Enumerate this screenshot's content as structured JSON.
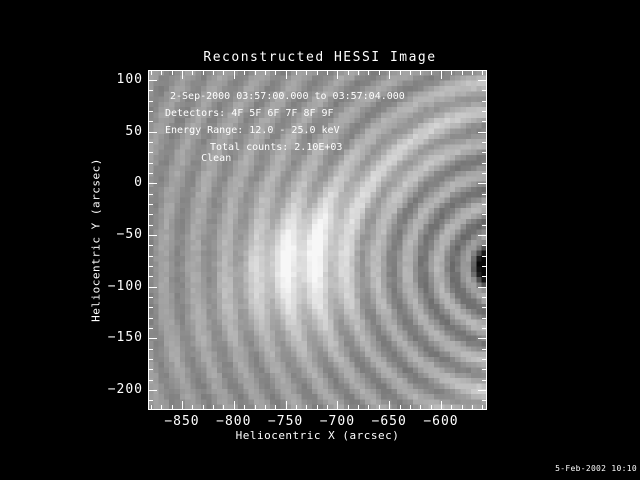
{
  "colors": {
    "background": "#000000",
    "foreground": "#ffffff",
    "image_palette": "grayscale"
  },
  "title": "Reconstructed HESSI Image",
  "footer_timestamp": "5-Feb-2002 10:10",
  "plot": {
    "xlabel": "Heliocentric X (arcsec)",
    "ylabel": "Heliocentric Y (arcsec)",
    "annotations": {
      "time_range": "2-Sep-2000 03:57:00.000 to 03:57:04.000",
      "detectors": "Detectors: 4F 5F 6F 7F 8F 9F",
      "energy_range": "Energy Range: 12.0 - 25.0 keV",
      "algorithm": "Clean",
      "total_counts": "Total counts: 2.10E+03"
    }
  },
  "chart_data": {
    "type": "heatmap",
    "title": "Reconstructed HESSI Image",
    "xlabel": "Heliocentric X (arcsec)",
    "ylabel": "Heliocentric Y (arcsec)",
    "xlim": [
      -882.8,
      -555.6
    ],
    "ylim": [
      -219.3,
      109.7
    ],
    "x_ticks": [
      -850,
      -800,
      -750,
      -700,
      -650,
      -600
    ],
    "y_ticks": [
      100,
      50,
      0,
      -50,
      -100,
      -150,
      -200
    ],
    "x_tick_labels": [
      "−850",
      "−800",
      "−750",
      "−700",
      "−650",
      "−600"
    ],
    "y_tick_labels": [
      "100",
      "50",
      "0",
      "−50",
      "−100",
      "−150",
      "−200"
    ],
    "major_tick_step": 50,
    "minor_tick_step": 10,
    "grid": false,
    "legend": "none",
    "colormap": "grayscale",
    "image_grid_size": 64,
    "annotations": [
      "2-Sep-2000 03:57:00.000 to 03:57:04.000",
      "Detectors: 4F 5F 6F 7F 8F 9F",
      "Energy Range: 12.0 - 25.0 keV",
      "Clean",
      "Total counts: 2.10E+03"
    ],
    "features": {
      "base_gray": 0.57,
      "ripple_center_frac": [
        1.04,
        0.58
      ],
      "ripple_wavelength_frac": 0.09,
      "ripple_phase": 1.2,
      "bright_source_frac": [
        0.47,
        0.6
      ],
      "bright_band_point_frac": [
        0.72,
        0.28
      ],
      "dark_spot_frac": [
        0.995,
        0.575
      ],
      "bright_corner_frac": [
        1.02,
        1.0
      ],
      "noise_amplitude": 0.05
    }
  }
}
